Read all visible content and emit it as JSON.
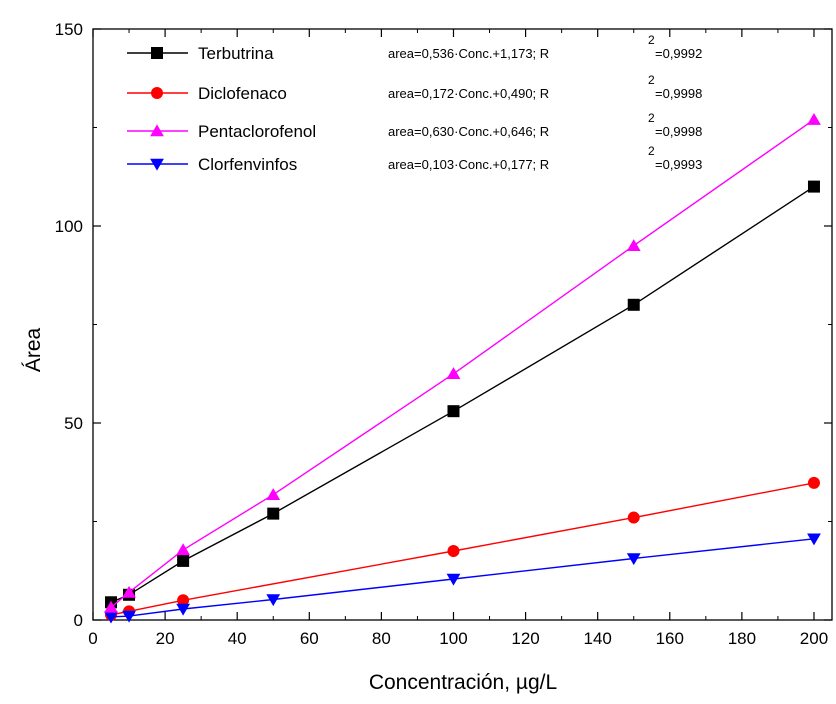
{
  "chart_data": {
    "type": "line",
    "xlabel": "Concentración, µg/L",
    "ylabel": "Área",
    "xlim": [
      0,
      205
    ],
    "ylim": [
      0,
      150
    ],
    "x_ticks": [
      0,
      20,
      40,
      60,
      80,
      100,
      120,
      140,
      160,
      180,
      200
    ],
    "y_ticks": [
      0,
      50,
      100,
      150
    ],
    "legend_position": "top-left",
    "grid": false,
    "series": [
      {
        "name": "Terbutrina",
        "color": "#000000",
        "marker": "square",
        "x": [
          5,
          10,
          25,
          50,
          100,
          150,
          200
        ],
        "y": [
          4.5,
          6.4,
          15.0,
          27.0,
          53.0,
          80.0,
          110.0
        ],
        "equation": "area=0,536·Conc.+1,173; R",
        "r2": "=0,9992"
      },
      {
        "name": "Diclofenaco",
        "color": "#ff0000",
        "marker": "circle",
        "x": [
          5,
          10,
          25,
          100,
          150,
          200
        ],
        "y": [
          1.3,
          2.2,
          5.0,
          17.5,
          26.0,
          34.8
        ],
        "equation": "area=0,172·Conc.+0,490; R",
        "r2": "=0,9998"
      },
      {
        "name": "Pentaclorofenol",
        "color": "#ff00ff",
        "marker": "triangle-up",
        "x": [
          5,
          10,
          25,
          50,
          100,
          150,
          200
        ],
        "y": [
          3.2,
          7.0,
          17.8,
          31.8,
          62.5,
          95.0,
          127.0
        ],
        "equation": "area=0,630·Conc.+0,646; R",
        "r2": "=0,9998"
      },
      {
        "name": "Clorfenvinfos",
        "color": "#0000ff",
        "marker": "triangle-down",
        "x": [
          5,
          10,
          25,
          50,
          100,
          150,
          200
        ],
        "y": [
          0.8,
          1.0,
          2.8,
          5.2,
          10.4,
          15.6,
          20.6
        ],
        "equation": "area=0,103·Conc.+0,177; R",
        "r2": "=0,9993"
      }
    ],
    "superscript": "2"
  }
}
